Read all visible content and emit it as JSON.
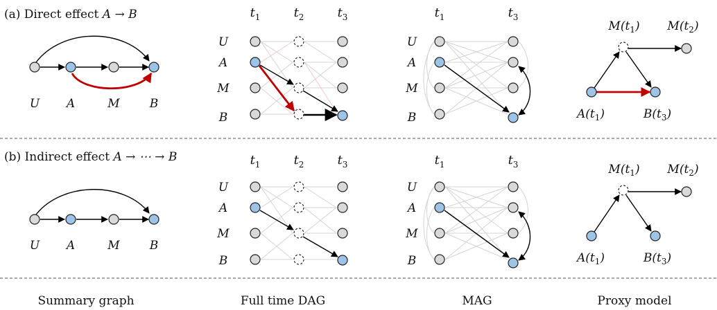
{
  "rows": [
    {
      "title_prefix": "(a) Direct effect ",
      "title_math": "A → B"
    },
    {
      "title_prefix": "(b) Indirect effect ",
      "title_math": "A → ⋯ → B"
    }
  ],
  "variables": [
    "U",
    "A",
    "M",
    "B"
  ],
  "time_labels": {
    "t1": "t",
    "t2": "t",
    "t3": "t",
    "sub1": "1",
    "sub2": "2",
    "sub3": "3"
  },
  "proxy_labels": {
    "m_t1": "M(t",
    "m_t1_sub": "1",
    "m_t2": "M(t",
    "m_t2_sub": "2",
    "a_t1": "A(t",
    "a_t1_sub": "1",
    "b_t3": "B(t",
    "b_t3_sub": "3",
    "close": ")"
  },
  "columns": [
    "Summary graph",
    "Full time DAG",
    "MAG",
    "Proxy model"
  ],
  "colors": {
    "blue_node": "#9dc3e6",
    "grey_node": "#d9d9d9",
    "red_edge": "#c00000"
  }
}
